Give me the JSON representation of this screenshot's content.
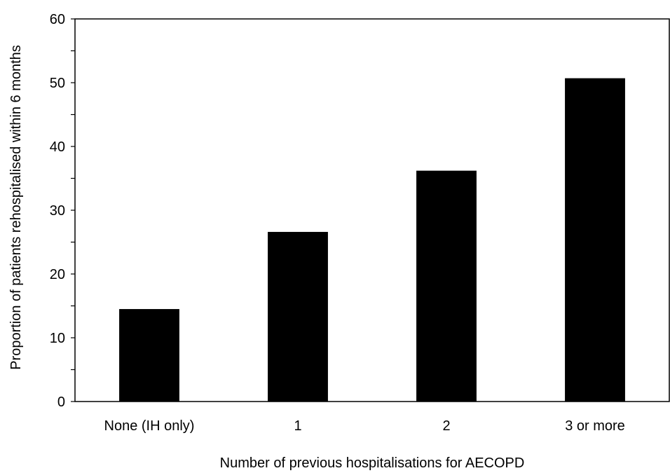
{
  "chart_data": {
    "type": "bar",
    "categories": [
      "None (IH only)",
      "1",
      "2",
      "3 or more"
    ],
    "values": [
      14.5,
      26.6,
      36.2,
      50.7
    ],
    "title": "",
    "xlabel": "Number of previous hospitalisations for AECOPD",
    "ylabel": "Proportion of patients rehospitalised within 6 months",
    "ylim": [
      0,
      60
    ],
    "yticks": [
      "0",
      "10",
      "20",
      "30",
      "40",
      "50",
      "60"
    ],
    "grid": false,
    "legend": "none",
    "bar_color": "#000000"
  }
}
